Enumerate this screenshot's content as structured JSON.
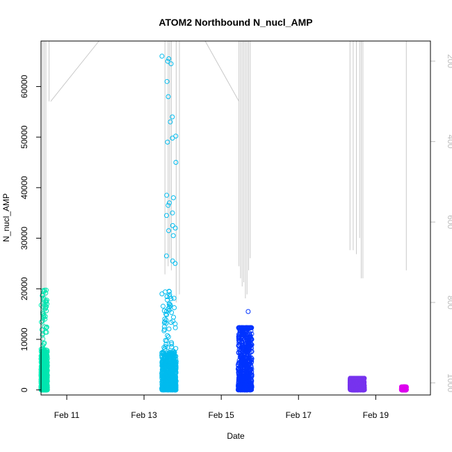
{
  "chart_data": {
    "type": "scatter",
    "title": "ATOM2 Northbound N_nucl_AMP",
    "xlabel": "Date",
    "ylabel": "N_nucl_AMP",
    "x_axis": {
      "type": "date",
      "range": [
        "2020-02-10T08:00",
        "2020-02-20T10:00"
      ],
      "ticks": [
        {
          "date": "2020-02-11T00:00",
          "label": "Feb 11"
        },
        {
          "date": "2020-02-13T00:00",
          "label": "Feb 13"
        },
        {
          "date": "2020-02-15T00:00",
          "label": "Feb 15"
        },
        {
          "date": "2020-02-17T00:00",
          "label": "Feb 17"
        },
        {
          "date": "2020-02-19T00:00",
          "label": "Feb 19"
        }
      ]
    },
    "y_axis": {
      "range": [
        -1000,
        69000
      ],
      "ticks": [
        0,
        10000,
        20000,
        30000,
        40000,
        50000,
        60000
      ]
    },
    "secondary_y_axis": {
      "reversed": true,
      "color": "#bdbdbd",
      "range": [
        1030,
        150
      ],
      "ticks": [
        200,
        400,
        600,
        800,
        1000
      ]
    },
    "series": [
      {
        "color": "#00e6b0",
        "start": "2020-02-10T08:00",
        "end": "2020-02-10T12:00",
        "dense_max": 8000,
        "sparse_max": 19800,
        "outliers": [
          19500,
          18800,
          18200,
          17000,
          15000,
          14000,
          12500
        ]
      },
      {
        "color": "#00bbee",
        "start": "2020-02-13T11:00",
        "end": "2020-02-13T20:00",
        "dense_max": 7500,
        "sparse_max": 19500,
        "outliers": [
          66000,
          65500,
          65000,
          64500,
          61000,
          58000,
          54000,
          53000,
          50200,
          49800,
          49000,
          45000,
          38500,
          38000,
          37000,
          36500,
          35000,
          34500,
          32500,
          32000,
          31500,
          30500,
          26500,
          25500,
          25000,
          19500,
          19000,
          16000,
          15500,
          15000,
          14000,
          13500,
          12500,
          10500,
          9800,
          9000,
          8500
        ]
      },
      {
        "color": "#0033ff",
        "start": "2020-02-15T10:30",
        "end": "2020-02-15T19:00",
        "dense_max": 12300,
        "sparse_max": 12300,
        "outliers": [
          15500
        ]
      },
      {
        "color": "#7733ee",
        "start": "2020-02-18T08:00",
        "end": "2020-02-18T17:00",
        "dense_max": 2300,
        "sparse_max": 2300,
        "outliers": []
      },
      {
        "color": "#dd00ee",
        "start": "2020-02-19T16:00",
        "end": "2020-02-19T19:00",
        "dense_max": 600,
        "sparse_max": 600,
        "outliers": []
      }
    ],
    "depth_profile": {
      "color": "#c8c8c8",
      "casts": [
        {
          "date": "2020-02-10T09:00",
          "max": 930
        },
        {
          "date": "2020-02-10T10:00",
          "max": 880
        },
        {
          "date": "2020-02-10T11:00",
          "max": 830
        },
        {
          "date": "2020-02-10T13:00",
          "max": 300
        },
        {
          "date": "2020-02-13T13:00",
          "max": 730
        },
        {
          "date": "2020-02-13T15:00",
          "max": 710
        },
        {
          "date": "2020-02-13T16:00",
          "max": 690
        },
        {
          "date": "2020-02-13T17:00",
          "max": 720
        },
        {
          "date": "2020-02-13T20:00",
          "max": 800
        },
        {
          "date": "2020-02-13T22:00",
          "max": 780
        },
        {
          "date": "2020-02-15T11:00",
          "max": 710
        },
        {
          "date": "2020-02-15T12:00",
          "max": 740
        },
        {
          "date": "2020-02-15T13:00",
          "max": 760
        },
        {
          "date": "2020-02-15T14:00",
          "max": 750
        },
        {
          "date": "2020-02-15T15:00",
          "max": 790
        },
        {
          "date": "2020-02-15T16:00",
          "max": 780
        },
        {
          "date": "2020-02-15T17:00",
          "max": 720
        },
        {
          "date": "2020-02-15T18:00",
          "max": 690
        },
        {
          "date": "2020-02-18T08:00",
          "max": 670
        },
        {
          "date": "2020-02-18T10:00",
          "max": 670
        },
        {
          "date": "2020-02-18T12:00",
          "max": 680
        },
        {
          "date": "2020-02-18T14:00",
          "max": 640
        },
        {
          "date": "2020-02-18T15:00",
          "max": 740
        },
        {
          "date": "2020-02-18T16:00",
          "max": 740
        },
        {
          "date": "2020-02-19T19:00",
          "max": 720
        }
      ],
      "transits": [
        {
          "from": {
            "date": "2020-02-10T14:00",
            "value": 300
          },
          "to": {
            "date": "2020-02-11T20:00",
            "value": 150
          }
        },
        {
          "from": {
            "date": "2020-02-14T14:00",
            "value": 150
          },
          "to": {
            "date": "2020-02-15T11:00",
            "value": 300
          }
        }
      ]
    },
    "grid": false,
    "legend": "none"
  }
}
